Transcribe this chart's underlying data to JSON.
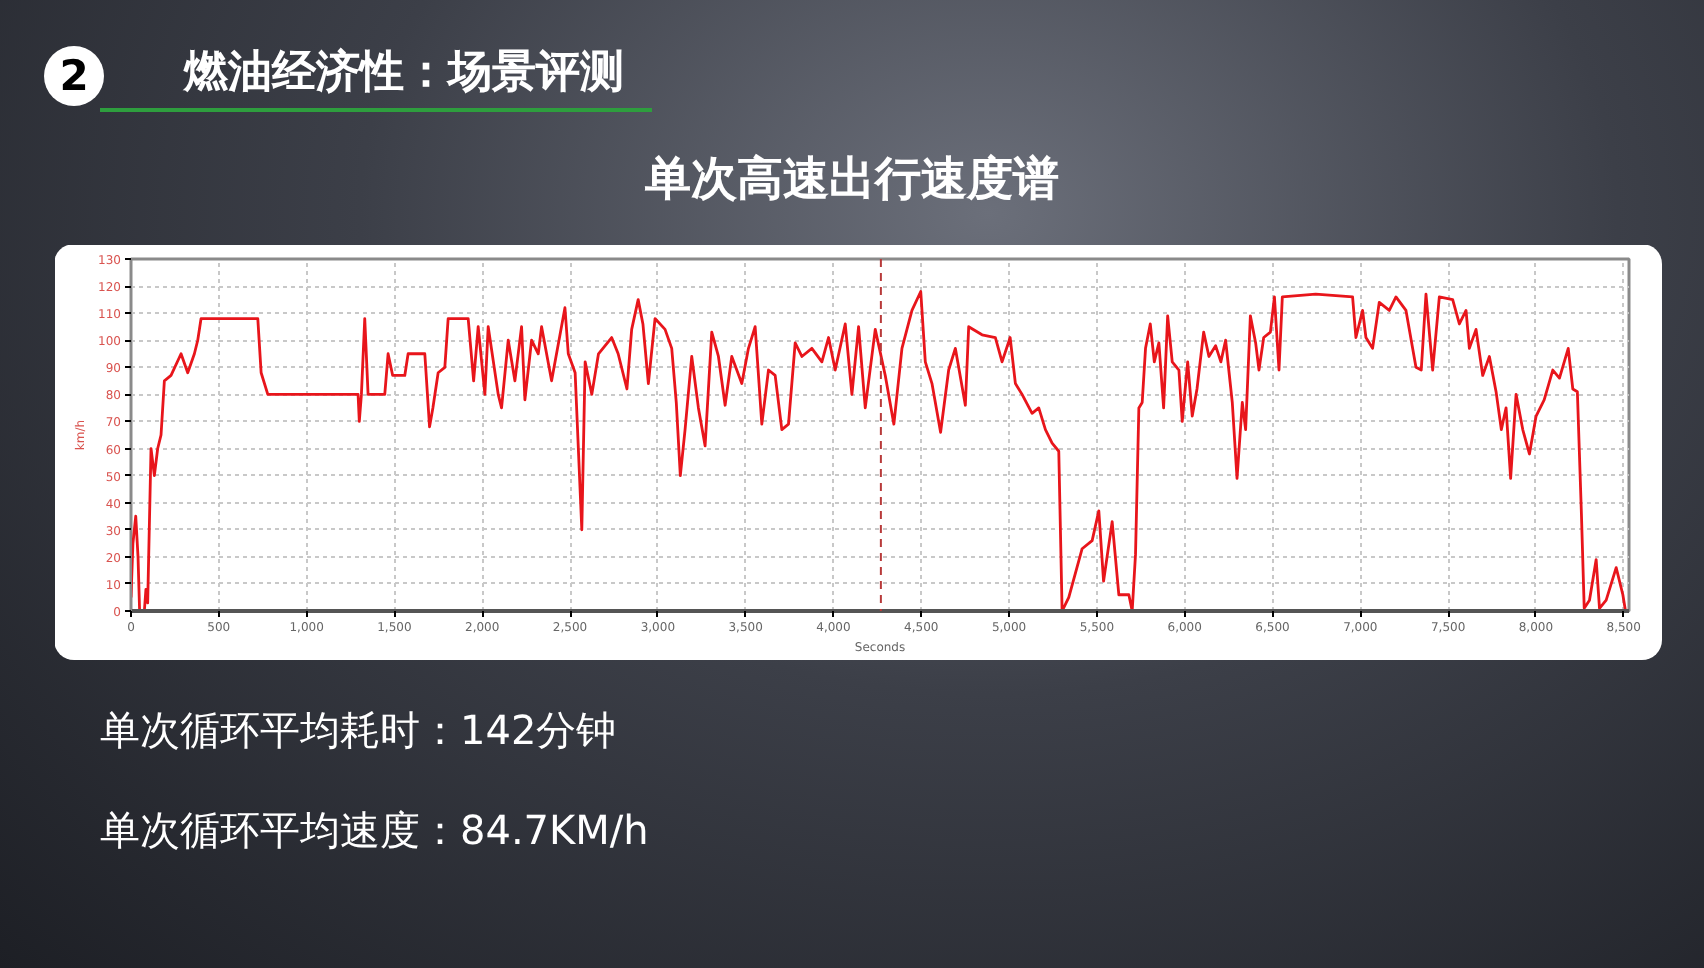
{
  "chart_data": {
    "type": "line",
    "title": "单次高速出行速度谱",
    "xlabel": "Seconds",
    "ylabel": "km/h",
    "annotations": [
      "2",
      "燃油经济性：场景评测",
      "单次循环平均耗时：142分钟",
      "单次循环平均速度：84.7KM/h"
    ],
    "x": [
      0,
      11,
      27,
      40,
      49,
      76,
      85,
      95,
      114,
      133,
      152,
      171,
      190,
      228,
      285,
      323,
      361,
      380,
      399,
      722,
      741,
      779,
      1293,
      1300,
      1312,
      1331,
      1350,
      1445,
      1464,
      1490,
      1559,
      1578,
      1673,
      1700,
      1719,
      1749,
      1787,
      1806,
      1920,
      1951,
      1977,
      2015,
      2034,
      2091,
      2110,
      2148,
      2186,
      2224,
      2243,
      2281,
      2319,
      2338,
      2395,
      2471,
      2490,
      2529,
      2567,
      2586,
      2624,
      2662,
      2737,
      2774,
      2824,
      2851,
      2888,
      2915,
      2946,
      2984,
      3041,
      3079,
      3105,
      3128,
      3155,
      3193,
      3231,
      3269,
      3307,
      3345,
      3383,
      3421,
      3478,
      3516,
      3554,
      3592,
      3630,
      3668,
      3706,
      3744,
      3782,
      3820,
      3877,
      3934,
      3972,
      4010,
      4067,
      4105,
      4143,
      4181,
      4238,
      4295,
      4344,
      4390,
      4447,
      4497,
      4523,
      4561,
      4610,
      4656,
      4694,
      4751,
      4770,
      4846,
      4922,
      4960,
      5006,
      5036,
      5074,
      5131,
      5169,
      5207,
      5245,
      5283,
      5302,
      5340,
      5416,
      5473,
      5511,
      5538,
      5587,
      5625,
      5682,
      5701,
      5720,
      5739,
      5758,
      5777,
      5804,
      5827,
      5853,
      5880,
      5903,
      5929,
      5967,
      5986,
      6017,
      6043,
      6070,
      6108,
      6138,
      6176,
      6206,
      6233,
      6271,
      6298,
      6328,
      6347,
      6374,
      6404,
      6423,
      6450,
      6488,
      6511,
      6537,
      6556,
      6746,
      6956,
      6975,
      7013,
      7032,
      7070,
      7108,
      7165,
      7203,
      7260,
      7317,
      7347,
      7374,
      7412,
      7450,
      7526,
      7564,
      7602,
      7621,
      7659,
      7697,
      7735,
      7773,
      7803,
      7830,
      7856,
      7887,
      7925,
      7963,
      8001,
      8047,
      8096,
      8134,
      8184,
      8210,
      8236,
      8259,
      8275,
      8305,
      8343,
      8362,
      8400,
      8457,
      8495,
      8510
    ],
    "series": [
      {
        "color": "#e8151b",
        "values": [
          5,
          25,
          35,
          20,
          0,
          0,
          8,
          3,
          60,
          50,
          60,
          65,
          85,
          87,
          95,
          88,
          95,
          100,
          108,
          108,
          88,
          80,
          80,
          70,
          80,
          108,
          80,
          80,
          95,
          87,
          87,
          95,
          95,
          68,
          75,
          88,
          90,
          108,
          108,
          85,
          105,
          80,
          105,
          80,
          75,
          100,
          85,
          105,
          78,
          100,
          95,
          105,
          85,
          112,
          95,
          88,
          30,
          92,
          80,
          95,
          101,
          95,
          82,
          104,
          115,
          106,
          84,
          108,
          104,
          97,
          77,
          50,
          67,
          94,
          75,
          61,
          103,
          94,
          76,
          94,
          84,
          97,
          105,
          69,
          89,
          87,
          67,
          69,
          99,
          94,
          97,
          92,
          101,
          89,
          106,
          80,
          105,
          75,
          104,
          87,
          69,
          97,
          111,
          118,
          92,
          84,
          66,
          89,
          97,
          76,
          105,
          102,
          101,
          92,
          101,
          84,
          80,
          73,
          75,
          67,
          62,
          59,
          0,
          5,
          23,
          26,
          37,
          11,
          33,
          6,
          6,
          0,
          21,
          75,
          77,
          97,
          106,
          92,
          99,
          75,
          109,
          92,
          89,
          70,
          92,
          72,
          82,
          103,
          94,
          98,
          92,
          100,
          77,
          49,
          77,
          67,
          109,
          99,
          89,
          101,
          103,
          116,
          89,
          116,
          117,
          116,
          101,
          111,
          101,
          97,
          114,
          111,
          116,
          111,
          90,
          89,
          117,
          89,
          116,
          115,
          106,
          111,
          97,
          104,
          87,
          94,
          81,
          67,
          75,
          49,
          80,
          67,
          58,
          72,
          78,
          89,
          86,
          97,
          82,
          81,
          36,
          1,
          4,
          19,
          1,
          4,
          16,
          6,
          0
        ]
      }
    ],
    "xlim": [
      0,
      8530
    ],
    "ylim": [
      0,
      130
    ],
    "xticks": [
      0,
      500,
      {
        "value": 1000,
        "label": "1,000"
      },
      {
        "value": 1500,
        "label": "1,500"
      },
      {
        "value": 2000,
        "label": "2,000"
      },
      {
        "value": 2500,
        "label": "2,500"
      },
      {
        "value": 3000,
        "label": "3,000"
      },
      {
        "value": 3500,
        "label": "3,500"
      },
      {
        "value": 4000,
        "label": "4,000"
      },
      {
        "value": 4500,
        "label": "4,500"
      },
      {
        "value": 5000,
        "label": "5,000"
      },
      {
        "value": 5500,
        "label": "5,500"
      },
      {
        "value": 6000,
        "label": "6,000"
      },
      {
        "value": 6500,
        "label": "6,500"
      },
      {
        "value": 7000,
        "label": "7,000"
      },
      {
        "value": 7500,
        "label": "7,500"
      },
      {
        "value": 8000,
        "label": "8,000"
      },
      {
        "value": 8500,
        "label": "8,500"
      }
    ],
    "yticks": [
      0,
      10,
      20,
      30,
      40,
      50,
      60,
      70,
      80,
      90,
      100,
      110,
      120,
      130
    ],
    "grid": true,
    "ref_lines": [
      {
        "axis": "x",
        "value": 4270,
        "color": "#b83a3a",
        "line_style": "dashed"
      }
    ]
  }
}
